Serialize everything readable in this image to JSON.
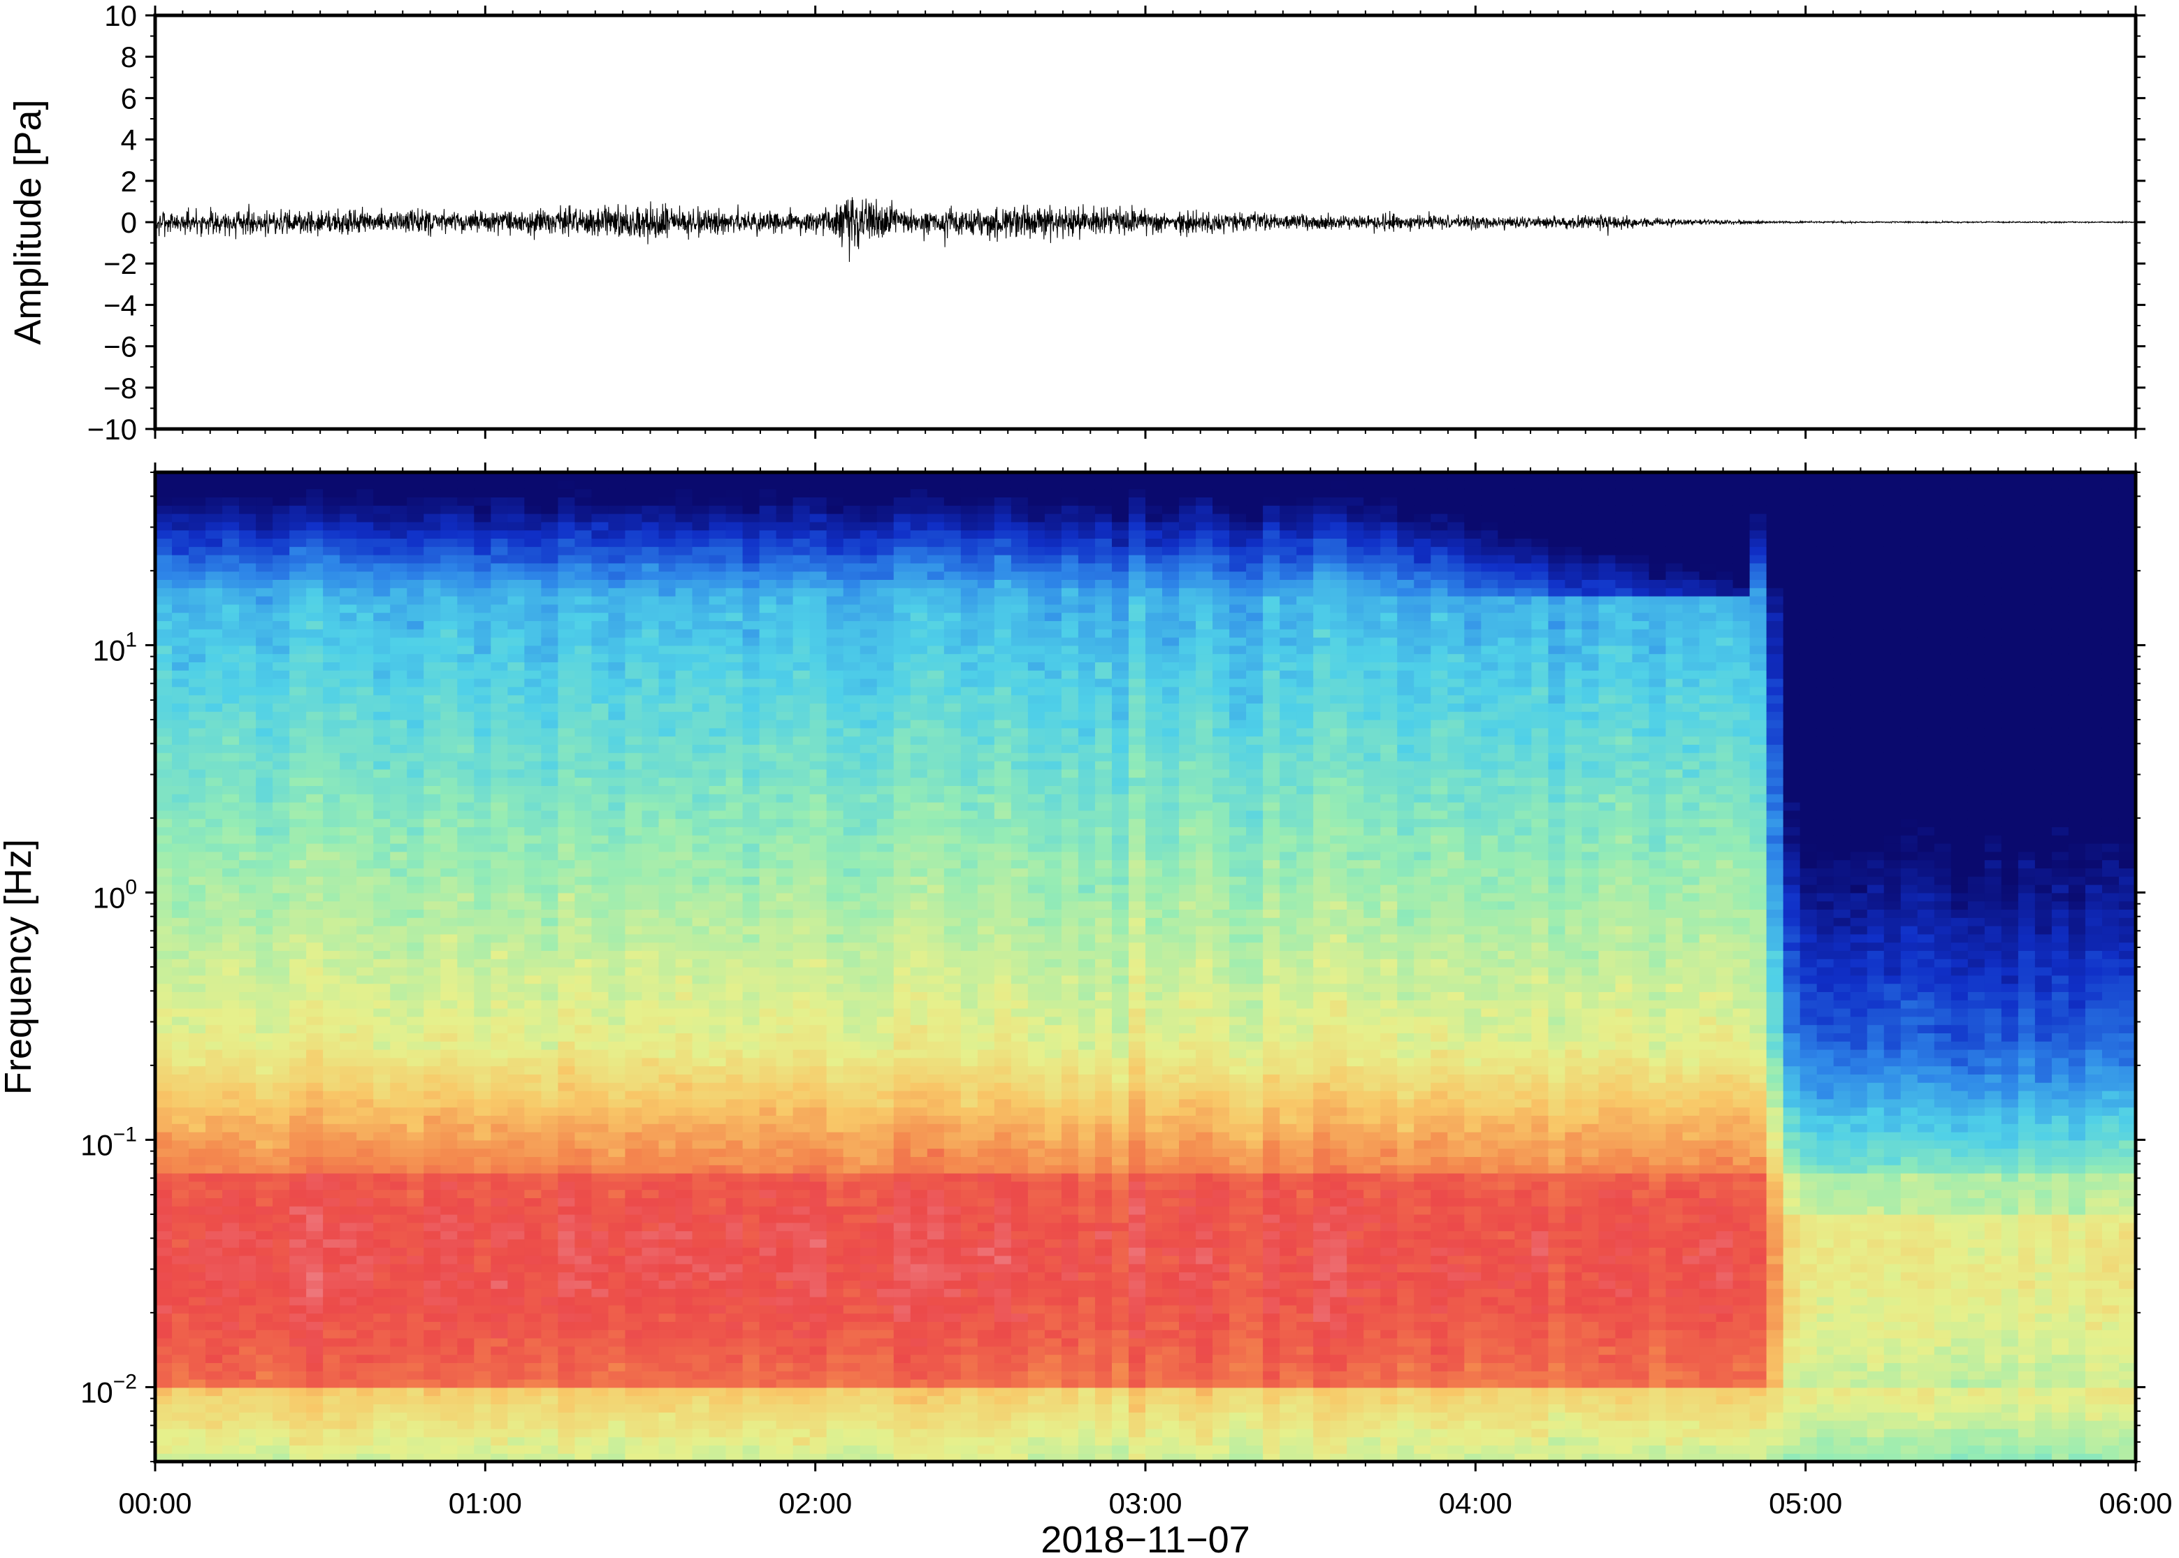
{
  "chart_data": [
    {
      "type": "line",
      "panel": "waveform",
      "ylabel": "Amplitude [Pa]",
      "ylim": [
        -10,
        10
      ],
      "yticks": [
        10,
        8,
        6,
        4,
        2,
        0,
        -2,
        -4,
        -6,
        -8,
        -10
      ],
      "ytick_labels": [
        "10",
        "8",
        "6",
        "4",
        "2",
        "0",
        "−2",
        "−4",
        "−6",
        "−8",
        "−10"
      ],
      "xlim_hours": [
        0,
        6
      ],
      "grid": false,
      "series": [
        {
          "color": "#000000",
          "envelope_hours": [
            0.0,
            0.25,
            0.5,
            0.75,
            1.0,
            1.25,
            1.5,
            1.75,
            2.0,
            2.1,
            2.25,
            2.5,
            2.75,
            3.0,
            3.25,
            3.5,
            3.75,
            4.0,
            4.25,
            4.4,
            4.5,
            4.75,
            4.9,
            5.0,
            5.5,
            6.0
          ],
          "envelope_pa": [
            0.6,
            0.8,
            0.7,
            0.7,
            0.6,
            0.8,
            1.0,
            0.7,
            0.7,
            1.6,
            0.8,
            0.8,
            0.9,
            0.7,
            0.6,
            0.5,
            0.45,
            0.4,
            0.3,
            0.5,
            0.25,
            0.15,
            0.08,
            0.05,
            0.04,
            0.04
          ]
        }
      ]
    },
    {
      "type": "heatmap",
      "panel": "spectrogram",
      "ylabel": "Frequency [Hz]",
      "xlabel": "2018−11−07",
      "yscale": "log",
      "ylim": [
        0.005,
        50
      ],
      "yticks": [
        {
          "value": 10,
          "base": "10",
          "exp": "1"
        },
        {
          "value": 1,
          "base": "10",
          "exp": "0"
        },
        {
          "value": 0.1,
          "base": "10",
          "exp": "−1"
        },
        {
          "value": 0.01,
          "base": "10",
          "exp": "−2"
        }
      ],
      "xticks": [
        "00:00",
        "01:00",
        "02:00",
        "03:00",
        "04:00",
        "05:00",
        "06:00"
      ],
      "xlim_hours": [
        0,
        6
      ],
      "colormap": [
        "#0a0a6e",
        "#1030c8",
        "#2e86e8",
        "#4fd0e8",
        "#96ecb4",
        "#e6f08c",
        "#f8c868",
        "#f4884e",
        "#ec4a4a",
        "#f0a0a8"
      ],
      "grid": false
    }
  ]
}
